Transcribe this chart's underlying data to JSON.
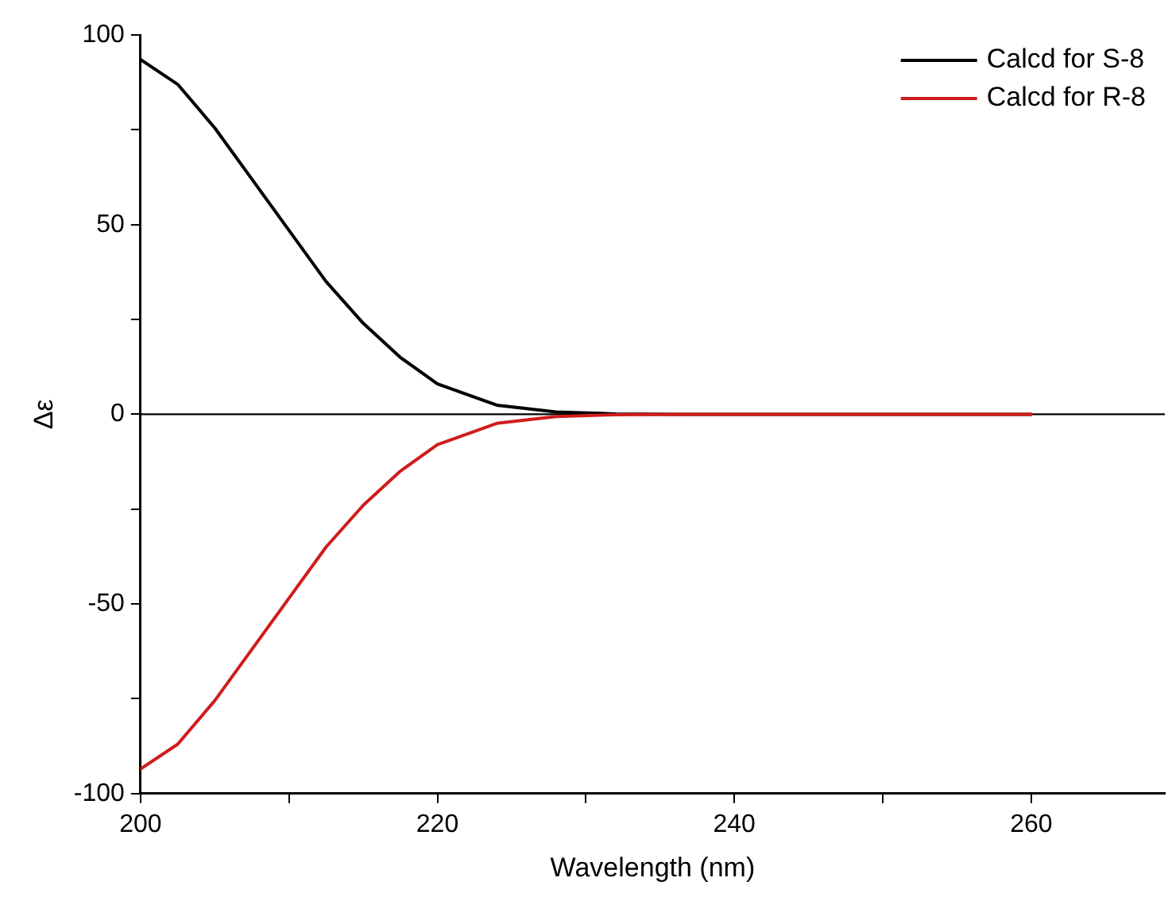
{
  "chart_data": {
    "type": "line",
    "x": [
      200,
      202.5,
      205,
      207.5,
      210,
      212.5,
      215,
      217.5,
      220,
      224,
      228,
      232,
      236,
      240,
      250,
      260
    ],
    "series": [
      {
        "name": "Calcd for S-8",
        "color": "#000000",
        "values": [
          93.5,
          87,
          75.5,
          62,
          48.5,
          35,
          24,
          15,
          8,
          2.4,
          0.6,
          0.1,
          0,
          0,
          0,
          0
        ]
      },
      {
        "name": "Calcd for R-8",
        "color": "#d01c1c",
        "values": [
          -93.5,
          -87,
          -75.5,
          -62,
          -48.5,
          -35,
          -24,
          -15,
          -8,
          -2.4,
          -0.6,
          -0.1,
          0,
          0,
          0,
          0
        ]
      }
    ],
    "xlabel": "Wavelength (nm)",
    "ylabel": "Δε",
    "xlim": [
      200,
      269
    ],
    "xticks": [
      200,
      {
        "value": 210,
        "label": null
      },
      220,
      {
        "value": 230,
        "label": null
      },
      240,
      {
        "value": 250,
        "label": null
      },
      260
    ],
    "ylim": [
      -100,
      100
    ],
    "yticks": [
      -100,
      {
        "value": -75,
        "label": null
      },
      -50,
      {
        "value": -25,
        "label": null
      },
      0,
      {
        "value": 25,
        "label": null
      },
      50,
      {
        "value": 75,
        "label": null
      },
      100
    ],
    "ref_lines": [
      {
        "axis": "y",
        "value": 0,
        "color": "#000000"
      }
    ],
    "grid": false,
    "legend": "top right",
    "marker": "none",
    "line_style": "solid"
  }
}
